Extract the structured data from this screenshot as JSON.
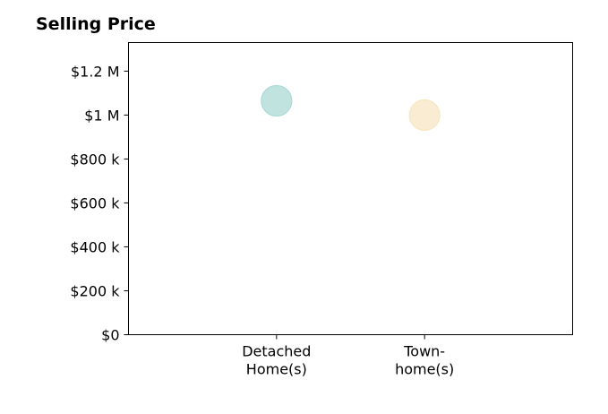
{
  "chart_data": {
    "type": "scatter",
    "title": "Selling Price",
    "xlabel": "",
    "ylabel": "",
    "categories": [
      [
        "Detached",
        "Home(s)"
      ],
      [
        "Town-",
        "home(s)"
      ]
    ],
    "values": [
      1065000,
      1000000
    ],
    "colors": [
      "#abdad6",
      "#f7e6c3"
    ],
    "yticks": [
      {
        "value": 0,
        "label": "$0"
      },
      {
        "value": 200000,
        "label": "$200 k"
      },
      {
        "value": 400000,
        "label": "$400 k"
      },
      {
        "value": 600000,
        "label": "$600 k"
      },
      {
        "value": 800000,
        "label": "$800 k"
      },
      {
        "value": 1000000,
        "label": "$1 M"
      },
      {
        "value": 1200000,
        "label": "$1.2 M"
      }
    ],
    "ylim": [
      0,
      1330000
    ],
    "xlim": [
      -1,
      2
    ],
    "grid": false,
    "legend": "none"
  }
}
